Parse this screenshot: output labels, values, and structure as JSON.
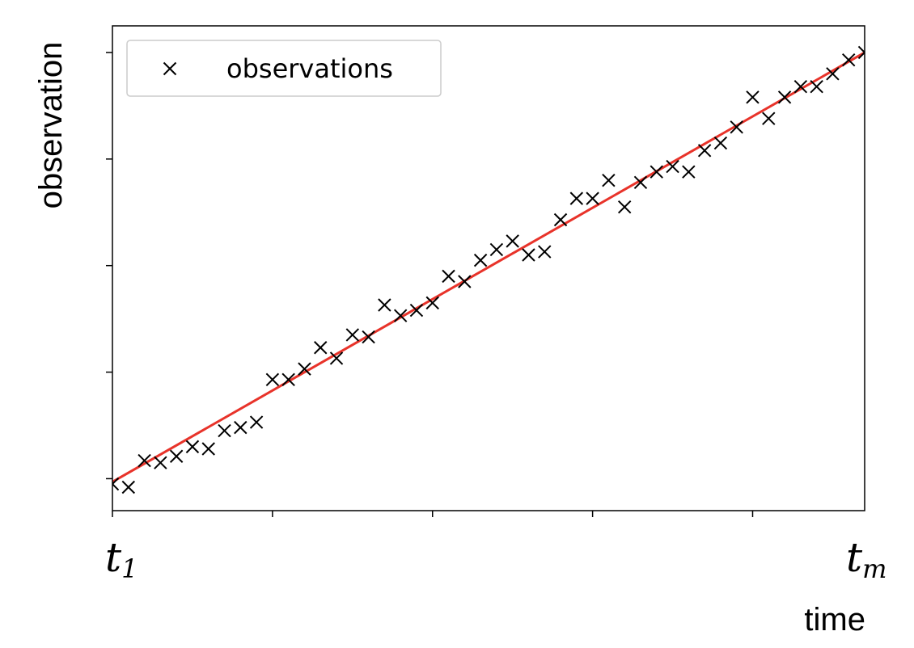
{
  "chart_data": {
    "type": "scatter",
    "xlabel": "time",
    "ylabel": "observation",
    "x_tick_labels": [
      {
        "main": "t",
        "sub": "1"
      },
      {
        "main": "t",
        "sub": "m"
      }
    ],
    "legend": {
      "placement": "top-left",
      "entries": [
        "observations"
      ]
    },
    "grid": false,
    "marker_color": "#000000",
    "fit_line_color": "#e8332a",
    "xlim": [
      0,
      47
    ],
    "ylim": [
      -0.3,
      4.25
    ],
    "fit_line": {
      "x": [
        0,
        47
      ],
      "y": [
        -0.03,
        4.0
      ]
    },
    "series": [
      {
        "name": "observations",
        "x": [
          0,
          1,
          2,
          3,
          4,
          5,
          6,
          7,
          8,
          9,
          10,
          11,
          12,
          13,
          14,
          15,
          16,
          17,
          18,
          19,
          20,
          21,
          22,
          23,
          24,
          25,
          26,
          27,
          28,
          29,
          30,
          31,
          32,
          33,
          34,
          35,
          36,
          37,
          38,
          39,
          40,
          41,
          42,
          43,
          44,
          45,
          46,
          47
        ],
        "y": [
          -0.05,
          -0.08,
          0.17,
          0.15,
          0.21,
          0.3,
          0.28,
          0.45,
          0.48,
          0.53,
          0.93,
          0.93,
          1.03,
          1.23,
          1.13,
          1.35,
          1.33,
          1.63,
          1.53,
          1.58,
          1.65,
          1.9,
          1.85,
          2.05,
          2.15,
          2.23,
          2.1,
          2.13,
          2.43,
          2.63,
          2.63,
          2.8,
          2.55,
          2.78,
          2.88,
          2.93,
          2.88,
          3.08,
          3.15,
          3.3,
          3.58,
          3.38,
          3.58,
          3.68,
          3.68,
          3.8,
          3.93,
          4.0
        ]
      }
    ]
  }
}
